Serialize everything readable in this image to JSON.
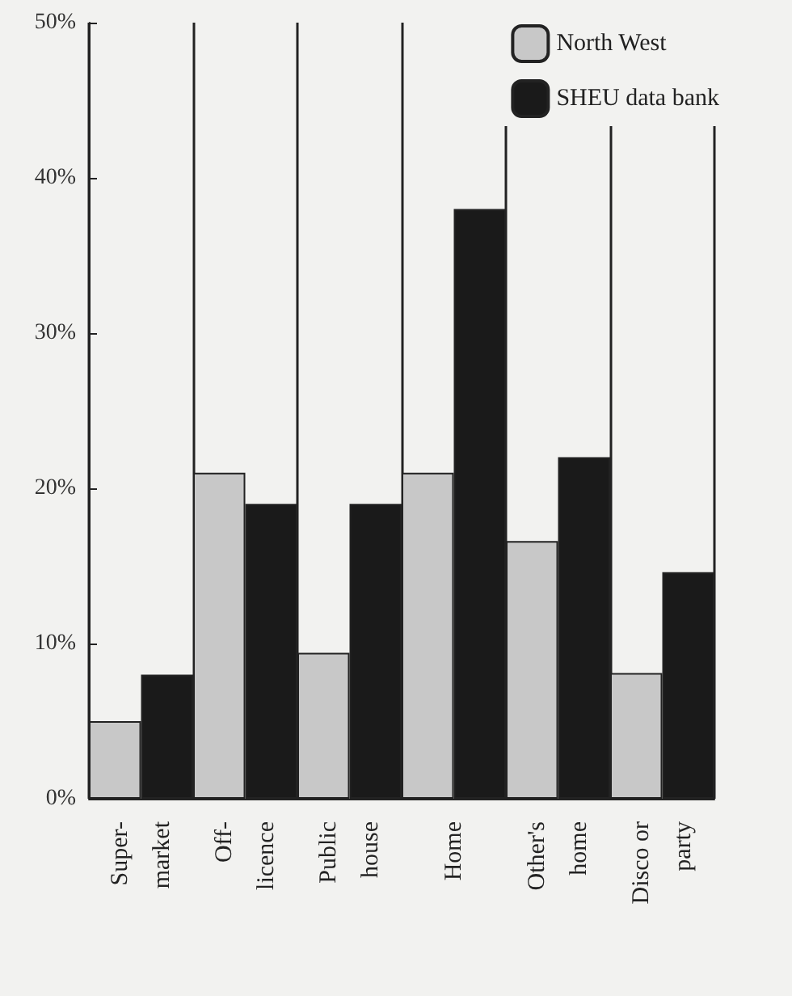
{
  "chart_data": {
    "type": "bar",
    "categories": [
      "Super-\nmarket",
      "Off-\nlicence",
      "Public\nhouse",
      "Home",
      "Other's\nhome",
      "Disco or\nparty"
    ],
    "series": [
      {
        "name": "North West",
        "color": "#c8c8c8",
        "values": [
          5,
          21,
          9.4,
          21,
          16.6,
          8.1
        ]
      },
      {
        "name": "SHEU data bank",
        "color": "#1a1a1a",
        "values": [
          8,
          19,
          19,
          38,
          22,
          14.6
        ]
      }
    ],
    "ylim": [
      0,
      50
    ],
    "yticks": [
      {
        "value": 0,
        "label": "0%"
      },
      {
        "value": 10,
        "label": "10%"
      },
      {
        "value": 20,
        "label": "20%"
      },
      {
        "value": 30,
        "label": "30%"
      },
      {
        "value": 40,
        "label": "40%"
      },
      {
        "value": 50,
        "label": "50%"
      }
    ],
    "grid": "x",
    "legend": "top right"
  }
}
